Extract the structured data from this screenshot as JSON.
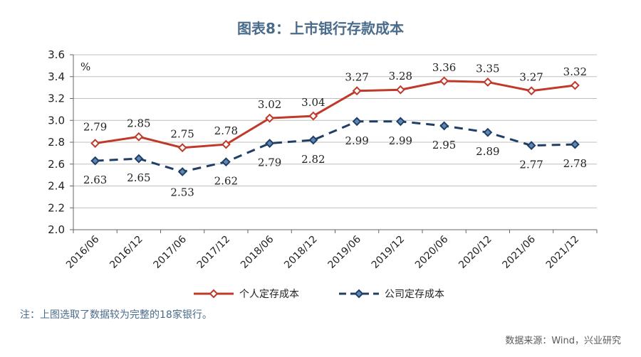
{
  "title": "图表8：上市银行存款成本",
  "note": "注：上图选取了数据较为完整的18家银行。",
  "source": "数据来源：Wind，兴业研究",
  "colors": {
    "personal": "#c0392b",
    "corporate": "#1f3f66",
    "grid": "#bfbfbf",
    "axis": "#666666"
  },
  "chart_data": {
    "type": "line",
    "title": "图表8：上市银行存款成本",
    "unit": "%",
    "categories": [
      "2016/06",
      "2016/12",
      "2017/06",
      "2017/12",
      "2018/06",
      "2018/12",
      "2019/06",
      "2019/12",
      "2020/06",
      "2020/12",
      "2021/06",
      "2021/12"
    ],
    "ylim": [
      2.0,
      3.6
    ],
    "yticks": [
      "2.0",
      "2.2",
      "2.4",
      "2.6",
      "2.8",
      "3.0",
      "3.2",
      "3.4",
      "3.6"
    ],
    "grid": true,
    "legend": "bottom",
    "series": [
      {
        "name": "个人定存成本",
        "style": "solid",
        "values": [
          2.79,
          2.85,
          2.75,
          2.78,
          3.02,
          3.04,
          3.27,
          3.28,
          3.36,
          3.35,
          3.27,
          3.32
        ],
        "labels": [
          "2.79",
          "2.85",
          "2.75",
          "2.78",
          "3.02",
          "3.04",
          "3.27",
          "3.28",
          "3.36",
          "3.35",
          "3.27",
          "3.32"
        ]
      },
      {
        "name": "公司定存成本",
        "style": "dashed",
        "values": [
          2.63,
          2.65,
          2.53,
          2.62,
          2.79,
          2.82,
          2.99,
          2.99,
          2.95,
          2.89,
          2.77,
          2.78
        ],
        "labels": [
          "2.63",
          "2.65",
          "2.53",
          "2.62",
          "2.79",
          "2.82",
          "2.99",
          "2.99",
          "2.95",
          "2.89",
          "2.77",
          "2.78"
        ]
      }
    ]
  }
}
